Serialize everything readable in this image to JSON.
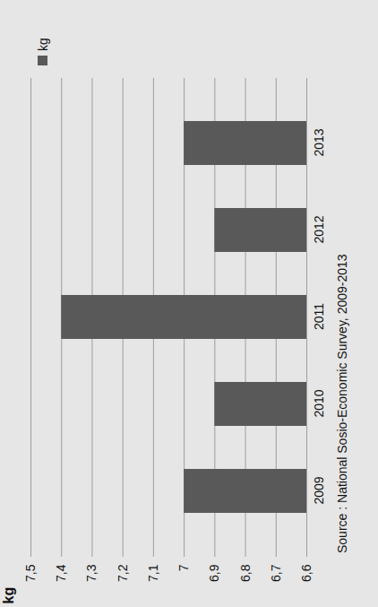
{
  "chart_data": {
    "type": "bar",
    "y_label": "kg",
    "caption": "Source : National Sosio-Economic Survey, 2009-2013",
    "categories": [
      "2009",
      "2010",
      "2011",
      "2012",
      "2013"
    ],
    "series": [
      {
        "name": "kg",
        "color": "#595959",
        "values": [
          7.0,
          6.9,
          7.4,
          6.9,
          7.0
        ]
      }
    ],
    "ylim": [
      6.6,
      7.5
    ],
    "yticks": [
      {
        "value": 6.6,
        "label": "6,6"
      },
      {
        "value": 6.7,
        "label": "6,7"
      },
      {
        "value": 6.8,
        "label": "6,8"
      },
      {
        "value": 6.9,
        "label": "6,9"
      },
      7,
      {
        "value": 7.1,
        "label": "7,1"
      },
      {
        "value": 7.2,
        "label": "7,2"
      },
      {
        "value": 7.3,
        "label": "7,3"
      },
      {
        "value": 7.4,
        "label": "7,4"
      },
      {
        "value": 7.5,
        "label": "7,5"
      }
    ],
    "grid": true,
    "legend": "right"
  }
}
